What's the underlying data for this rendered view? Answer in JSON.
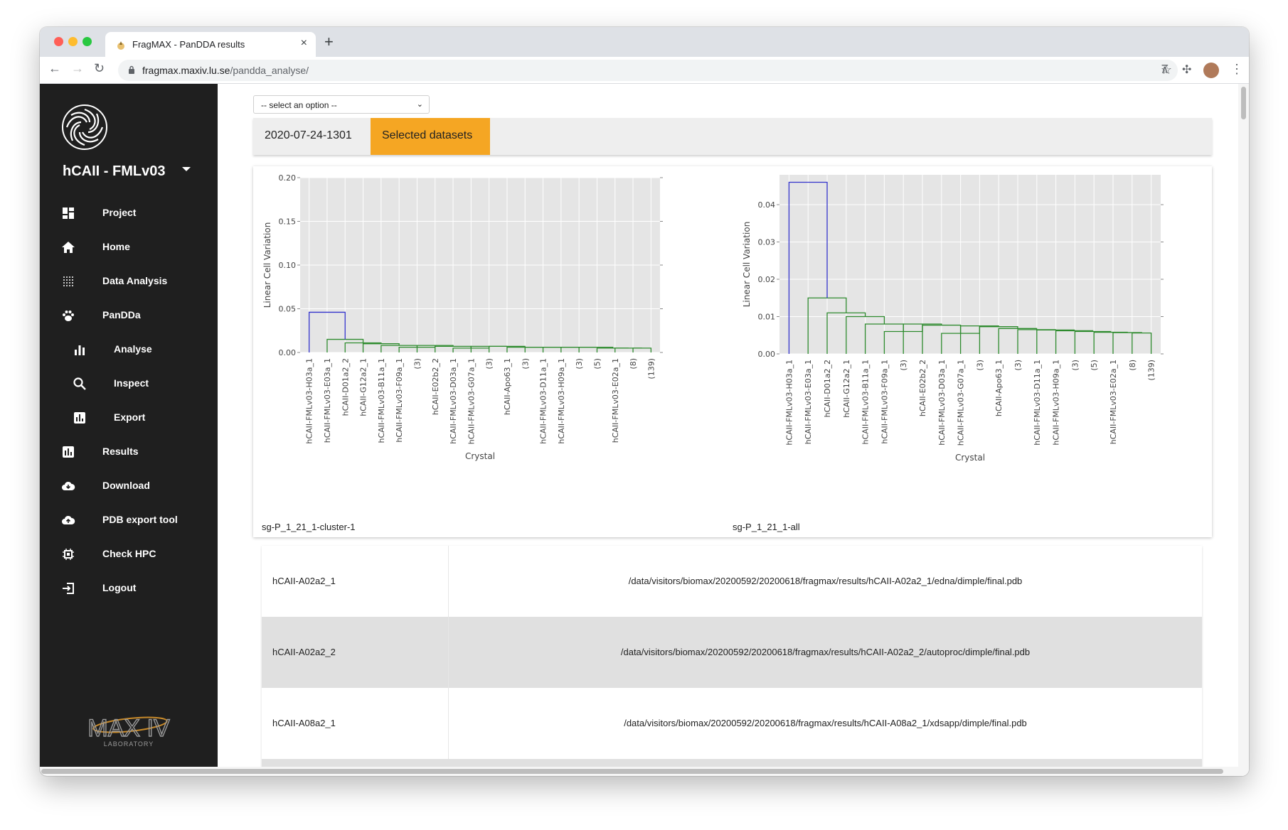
{
  "browser": {
    "tab_title": "FragMAX - PanDDA results",
    "url_host": "fragmax.maxiv.lu.se",
    "url_path": "/pandda_analyse/"
  },
  "sidebar": {
    "project": "hCAII - FMLv03",
    "items": [
      {
        "label": "Project",
        "icon": "dashboard-icon"
      },
      {
        "label": "Home",
        "icon": "home-icon"
      },
      {
        "label": "Data Analysis",
        "icon": "dots-grid-icon"
      },
      {
        "label": "PanDDa",
        "icon": "paw-icon"
      },
      {
        "label": "Analyse",
        "icon": "bar-chart-icon"
      },
      {
        "label": "Inspect",
        "icon": "search-icon"
      },
      {
        "label": "Export",
        "icon": "chart-box-icon"
      },
      {
        "label": "Results",
        "icon": "results-icon"
      },
      {
        "label": "Download",
        "icon": "cloud-download-icon"
      },
      {
        "label": "PDB export tool",
        "icon": "cloud-upload-icon"
      },
      {
        "label": "Check HPC",
        "icon": "chip-icon"
      },
      {
        "label": "Logout",
        "icon": "logout-icon"
      }
    ],
    "footer_logo_text": "MAX IV",
    "footer_logo_sub": "LABORATORY"
  },
  "main": {
    "select_placeholder": "-- select an option --",
    "run_tab": "2020-07-24-1301",
    "selected_tab": "Selected datasets",
    "accent_color": "#f5a623"
  },
  "chart_data": [
    {
      "type": "dendrogram",
      "caption": "sg-P_1_21_1-cluster-1",
      "xlabel": "Crystal",
      "ylabel": "Linear Cell Variation",
      "ylim": [
        0,
        0.2
      ],
      "yticks": [
        "0.00",
        "0.05",
        "0.10",
        "0.15",
        "0.20"
      ],
      "leaves": [
        "hCAII-FMLv03-H03a_1",
        "hCAII-FMLv03-E03a_1",
        "hCAII-D01a2_2",
        "hCAII-G12a2_1",
        "hCAII-FMLv03-B11a_1",
        "hCAII-FMLv03-F09a_1",
        "(3)",
        "hCAII-E02b2_2",
        "hCAII-FMLv03-D03a_1",
        "hCAII-FMLv03-G07a_1",
        "(3)",
        "hCAII-Apo63_1",
        "(3)",
        "hCAII-FMLv03-D11a_1",
        "hCAII-FMLv03-H09a_1",
        "(3)",
        "(5)",
        "hCAII-FMLv03-E02a_1",
        "(8)",
        "(139)"
      ],
      "merge_heights": [
        0.046,
        0.015,
        0.011,
        0.01,
        0.008,
        0.006,
        0.008,
        0.007,
        0.005,
        0.007,
        0.007,
        0.006,
        0.006,
        0.006,
        0.006,
        0.006,
        0.005,
        0.005,
        0.005
      ]
    },
    {
      "type": "dendrogram",
      "caption": "sg-P_1_21_1-all",
      "xlabel": "Crystal",
      "ylabel": "Linear Cell Variation",
      "ylim": [
        0,
        0.048
      ],
      "yticks": [
        "0.00",
        "0.01",
        "0.02",
        "0.03",
        "0.04"
      ],
      "leaves": [
        "hCAII-FMLv03-H03a_1",
        "hCAII-FMLv03-E03a_1",
        "hCAII-D01a2_2",
        "hCAII-G12a2_1",
        "hCAII-FMLv03-B11a_1",
        "hCAII-FMLv03-F09a_1",
        "(3)",
        "hCAII-E02b2_2",
        "hCAII-FMLv03-D03a_1",
        "hCAII-FMLv03-G07a_1",
        "(3)",
        "hCAII-Apo63_1",
        "(3)",
        "hCAII-FMLv03-D11a_1",
        "hCAII-FMLv03-H09a_1",
        "(3)",
        "(5)",
        "hCAII-FMLv03-E02a_1",
        "(8)",
        "(139)"
      ],
      "merge_heights": [
        0.046,
        0.015,
        0.011,
        0.01,
        0.008,
        0.006,
        0.008,
        0.0077,
        0.0055,
        0.0075,
        0.0073,
        0.0068,
        0.0065,
        0.0064,
        0.0062,
        0.006,
        0.0058,
        0.0057,
        0.0056
      ]
    }
  ],
  "datasets": [
    {
      "name": "hCAII-A02a2_1",
      "path": "/data/visitors/biomax/20200592/20200618/fragmax/results/hCAII-A02a2_1/edna/dimple/final.pdb"
    },
    {
      "name": "hCAII-A02a2_2",
      "path": "/data/visitors/biomax/20200592/20200618/fragmax/results/hCAII-A02a2_2/autoproc/dimple/final.pdb"
    },
    {
      "name": "hCAII-A08a2_1",
      "path": "/data/visitors/biomax/20200592/20200618/fragmax/results/hCAII-A08a2_1/xdsapp/dimple/final.pdb"
    }
  ]
}
